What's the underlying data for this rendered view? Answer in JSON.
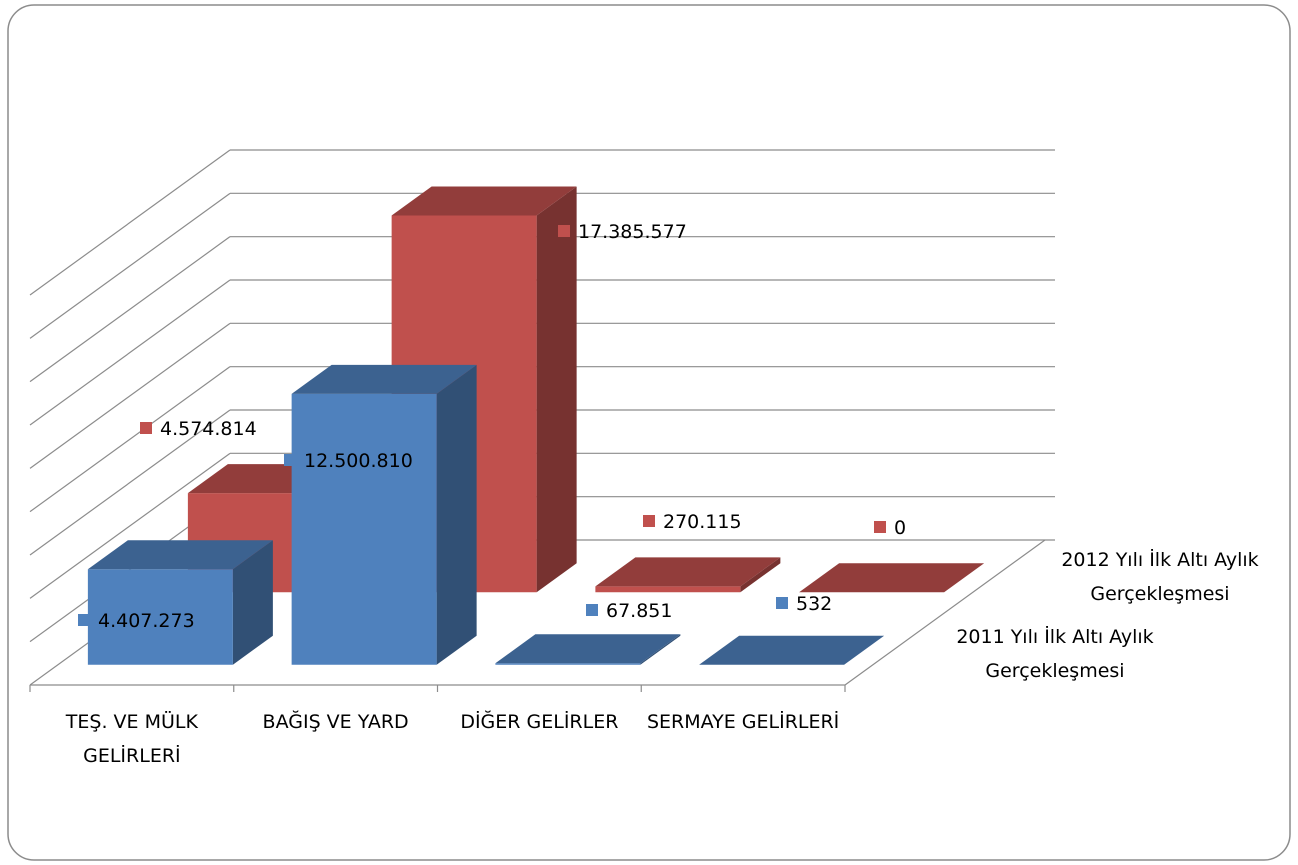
{
  "chart_data": {
    "type": "bar3d",
    "categories": [
      "TEŞ. VE MÜLK GELİRLERİ",
      "BAĞIŞ VE YARD",
      "DİĞER GELİRLER",
      "SERMAYE GELİRLERİ"
    ],
    "series": [
      {
        "name": "2011 Yılı İlk Altı Aylık Gerçekleşmesi",
        "color": "#4f81bd",
        "values": [
          4407273,
          12500810,
          67851,
          532
        ],
        "value_labels": [
          "4.407.273",
          "12.500.810",
          "67.851",
          "532"
        ]
      },
      {
        "name": "2012 Yılı İlk Altı Aylık Gerçekleşmesi",
        "color": "#c0504d",
        "values": [
          4574814,
          17385577,
          270115,
          0
        ],
        "value_labels": [
          "4.574.814",
          "17.385.577",
          "270.115",
          "0"
        ]
      }
    ],
    "ylim": [
      0,
      18000000
    ],
    "yticks": [
      0,
      2000000,
      4000000,
      6000000,
      8000000,
      10000000,
      12000000,
      14000000,
      16000000,
      18000000
    ],
    "grid": true
  }
}
